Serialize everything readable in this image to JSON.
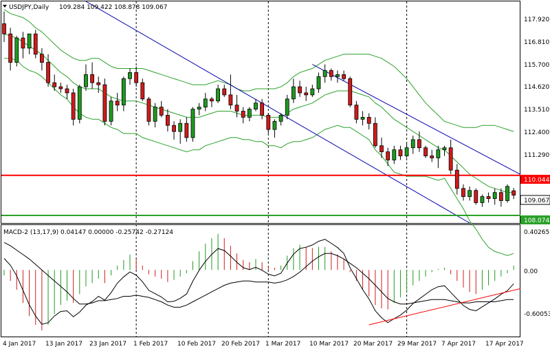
{
  "colors": {
    "bull": "#1e9a1e",
    "bear": "#d11a1a",
    "envelope": "#2aa02a",
    "channel": "#0000aa",
    "resistance": "#ff0000",
    "support": "#2aa02a",
    "macd_line": "#000000",
    "grid_vline": "#000000",
    "price_tag_bg": "#ffffff",
    "res_tag_bg": "#ff0000"
  },
  "header": {
    "symbol_label": "USDJPY,Daily",
    "ohlc": "109.284 109.422 108.878 109.067",
    "macd_label": "MACD-2 (13,17,9) 0.04147 0.00000 -0.25742 -0.27124"
  },
  "price_axis": {
    "ticks": [
      "117.920",
      "116.810",
      "115.700",
      "114.620",
      "113.510",
      "112.400",
      "111.290"
    ],
    "last_price": "109.067",
    "resistance": "110.044",
    "support": "108.074"
  },
  "macd_axis": {
    "ticks": [
      "0.40265",
      "0.00",
      "-0.60053"
    ]
  },
  "time_axis": {
    "labels": [
      "4 Jan 2017",
      "13 Jan 2017",
      "23 Jan 2017",
      "1 Feb 2017",
      "10 Feb 2017",
      "20 Feb 2017",
      "1 Mar 2017",
      "10 Mar 2017",
      "20 Mar 2017",
      "29 Mar 2017",
      "7 Apr 2017",
      "17 Apr 2017"
    ]
  },
  "chart_data": {
    "type": "candlestick",
    "title": "USDJPY,Daily",
    "ylim": [
      107.7,
      118.6
    ],
    "candles": [
      [
        117.5,
        118.1,
        116.6,
        117.0
      ],
      [
        117.0,
        117.3,
        115.2,
        115.6
      ],
      [
        115.6,
        116.9,
        115.4,
        116.8
      ],
      [
        116.8,
        117.1,
        115.8,
        116.3
      ],
      [
        116.3,
        117.0,
        116.0,
        117.0
      ],
      [
        117.0,
        117.2,
        115.8,
        116.0
      ],
      [
        116.0,
        116.3,
        115.2,
        115.6
      ],
      [
        115.6,
        116.0,
        114.4,
        114.6
      ],
      [
        114.6,
        115.0,
        114.2,
        114.4
      ],
      [
        114.4,
        114.6,
        114.1,
        114.3
      ],
      [
        114.3,
        114.5,
        113.8,
        114.1
      ],
      [
        114.1,
        114.3,
        112.5,
        112.8
      ],
      [
        112.8,
        114.5,
        112.6,
        114.4
      ],
      [
        114.4,
        115.5,
        114.2,
        115.0
      ],
      [
        115.0,
        115.6,
        114.3,
        114.6
      ],
      [
        114.6,
        114.9,
        114.1,
        114.5
      ],
      [
        114.5,
        114.8,
        112.5,
        112.7
      ],
      [
        112.7,
        113.9,
        112.5,
        113.7
      ],
      [
        113.7,
        114.1,
        113.2,
        113.5
      ],
      [
        113.5,
        114.9,
        113.2,
        114.8
      ],
      [
        114.8,
        115.3,
        114.5,
        115.1
      ],
      [
        115.1,
        115.4,
        114.4,
        114.6
      ],
      [
        114.6,
        114.8,
        113.7,
        113.8
      ],
      [
        113.8,
        113.9,
        112.5,
        112.7
      ],
      [
        112.7,
        113.6,
        112.4,
        113.4
      ],
      [
        113.4,
        113.7,
        112.9,
        113.0
      ],
      [
        113.0,
        113.3,
        112.2,
        112.5
      ],
      [
        112.5,
        112.7,
        111.8,
        112.2
      ],
      [
        112.2,
        112.8,
        111.6,
        112.6
      ],
      [
        112.6,
        112.9,
        111.7,
        111.9
      ],
      [
        111.9,
        113.4,
        111.7,
        113.3
      ],
      [
        113.3,
        113.6,
        113.0,
        113.4
      ],
      [
        113.4,
        114.1,
        113.2,
        113.8
      ],
      [
        113.8,
        113.9,
        113.4,
        113.7
      ],
      [
        113.7,
        114.5,
        113.6,
        114.3
      ],
      [
        114.3,
        114.5,
        113.9,
        114.0
      ],
      [
        114.0,
        115.0,
        113.3,
        113.5
      ],
      [
        113.5,
        114.0,
        112.9,
        113.2
      ],
      [
        113.2,
        113.4,
        112.6,
        112.9
      ],
      [
        112.9,
        113.4,
        112.7,
        113.3
      ],
      [
        113.3,
        113.8,
        113.2,
        113.6
      ],
      [
        113.6,
        113.8,
        112.8,
        113.0
      ],
      [
        113.0,
        113.1,
        112.1,
        112.3
      ],
      [
        112.3,
        112.8,
        111.9,
        112.7
      ],
      [
        112.7,
        113.1,
        112.5,
        113.0
      ],
      [
        113.0,
        114.0,
        112.8,
        113.8
      ],
      [
        113.8,
        114.8,
        113.6,
        114.4
      ],
      [
        114.4,
        114.7,
        113.9,
        114.1
      ],
      [
        114.1,
        114.4,
        113.7,
        114.0
      ],
      [
        114.0,
        114.5,
        113.9,
        114.3
      ],
      [
        114.3,
        115.1,
        114.1,
        114.9
      ],
      [
        114.9,
        115.5,
        114.6,
        115.2
      ],
      [
        115.2,
        115.3,
        114.7,
        114.9
      ],
      [
        114.9,
        115.2,
        114.6,
        115.0
      ],
      [
        115.0,
        115.2,
        114.7,
        114.8
      ],
      [
        114.8,
        114.9,
        113.4,
        113.5
      ],
      [
        113.5,
        113.7,
        112.6,
        112.8
      ],
      [
        112.8,
        113.2,
        112.5,
        112.9
      ],
      [
        112.9,
        113.1,
        112.3,
        112.6
      ],
      [
        112.6,
        112.9,
        111.4,
        111.5
      ],
      [
        111.5,
        111.9,
        110.9,
        111.2
      ],
      [
        111.2,
        111.4,
        110.5,
        110.8
      ],
      [
        110.8,
        111.5,
        110.6,
        111.3
      ],
      [
        111.3,
        111.5,
        110.8,
        111.0
      ],
      [
        111.0,
        111.6,
        110.9,
        111.4
      ],
      [
        111.4,
        112.0,
        111.1,
        111.8
      ],
      [
        111.8,
        112.2,
        111.2,
        111.4
      ],
      [
        111.4,
        111.5,
        110.9,
        111.0
      ],
      [
        111.0,
        111.3,
        110.7,
        110.9
      ],
      [
        110.9,
        111.5,
        110.4,
        111.3
      ],
      [
        111.3,
        111.5,
        111.0,
        111.4
      ],
      [
        111.4,
        111.8,
        110.1,
        110.3
      ],
      [
        110.3,
        110.6,
        109.1,
        109.4
      ],
      [
        109.4,
        109.6,
        108.8,
        109.0
      ],
      [
        109.0,
        109.5,
        108.8,
        109.3
      ],
      [
        109.3,
        109.4,
        108.6,
        108.7
      ],
      [
        108.7,
        109.1,
        108.5,
        109.0
      ],
      [
        109.0,
        109.2,
        108.7,
        108.9
      ],
      [
        108.9,
        109.4,
        108.6,
        109.2
      ],
      [
        109.2,
        109.4,
        108.5,
        108.8
      ],
      [
        108.8,
        109.6,
        108.7,
        109.5
      ],
      [
        109.284,
        109.422,
        108.878,
        109.067
      ]
    ],
    "upper_band": [
      118.2,
      118.0,
      117.9,
      117.8,
      117.6,
      117.3,
      117.1,
      116.8,
      116.5,
      116.2,
      116.0,
      115.8,
      115.7,
      115.7,
      115.8,
      115.8,
      115.6,
      115.4,
      115.3,
      115.3,
      115.3,
      115.3,
      115.3,
      115.2,
      115.1,
      115.0,
      114.9,
      114.8,
      114.7,
      114.6,
      114.5,
      114.5,
      114.5,
      114.6,
      114.7,
      114.6,
      114.5,
      114.3,
      114.2,
      114.2,
      114.3,
      114.3,
      114.3,
      114.3,
      114.4,
      114.6,
      114.9,
      115.1,
      115.2,
      115.3,
      115.5,
      115.7,
      115.8,
      115.9,
      116.0,
      116.0,
      116.0,
      116.0,
      116.0,
      115.9,
      115.8,
      115.6,
      115.4,
      115.1,
      114.8,
      114.4,
      114.0,
      113.6,
      113.3,
      113.0,
      112.7,
      112.6,
      112.5,
      112.4,
      112.4,
      112.4,
      112.5,
      112.5,
      112.5,
      112.4,
      112.3,
      112.2
    ],
    "middle_band": [
      117.0,
      116.9,
      116.8,
      116.6,
      116.4,
      116.2,
      116.0,
      115.7,
      115.4,
      115.1,
      114.9,
      114.6,
      114.4,
      114.3,
      114.3,
      114.3,
      114.1,
      113.9,
      113.8,
      113.7,
      113.7,
      113.7,
      113.6,
      113.5,
      113.4,
      113.3,
      113.2,
      113.1,
      113.0,
      112.9,
      112.9,
      112.9,
      113.0,
      113.1,
      113.2,
      113.2,
      113.2,
      113.1,
      113.0,
      113.0,
      113.0,
      113.0,
      112.9,
      112.9,
      112.9,
      113.1,
      113.3,
      113.4,
      113.5,
      113.6,
      113.8,
      114.0,
      114.1,
      114.2,
      114.2,
      114.2,
      114.1,
      114.0,
      113.9,
      113.6,
      113.4,
      113.1,
      112.8,
      112.6,
      112.4,
      112.2,
      112.0,
      111.8,
      111.6,
      111.4,
      111.3,
      111.0,
      110.7,
      110.4,
      110.1,
      109.9,
      109.7,
      109.5,
      109.4,
      109.3,
      109.2,
      109.2
    ],
    "lower_band": [
      115.8,
      115.8,
      115.7,
      115.4,
      115.2,
      115.1,
      114.9,
      114.6,
      114.3,
      114.0,
      113.8,
      113.4,
      113.1,
      112.9,
      112.8,
      112.8,
      112.6,
      112.4,
      112.3,
      112.1,
      112.1,
      112.1,
      111.9,
      111.8,
      111.7,
      111.6,
      111.5,
      111.4,
      111.3,
      111.2,
      111.3,
      111.3,
      111.5,
      111.6,
      111.7,
      111.8,
      111.9,
      111.9,
      111.8,
      111.8,
      111.7,
      111.7,
      111.5,
      111.5,
      111.4,
      111.6,
      111.7,
      111.7,
      111.8,
      111.9,
      112.1,
      112.3,
      112.4,
      112.5,
      112.4,
      112.4,
      112.2,
      112.0,
      111.8,
      111.3,
      111.0,
      110.6,
      110.2,
      110.1,
      110.0,
      110.0,
      110.0,
      110.0,
      109.9,
      109.8,
      109.9,
      109.4,
      108.9,
      108.4,
      107.8,
      107.4,
      106.9,
      106.5,
      106.3,
      106.2,
      106.1,
      106.2
    ],
    "macd_histogram": [
      -0.05,
      -0.1,
      -0.18,
      -0.3,
      -0.42,
      -0.5,
      -0.55,
      -0.5,
      -0.4,
      -0.32,
      -0.28,
      -0.3,
      -0.22,
      -0.15,
      -0.12,
      -0.08,
      -0.12,
      -0.05,
      0.04,
      0.09,
      0.14,
      0.1,
      0.04,
      -0.04,
      -0.06,
      -0.08,
      -0.11,
      -0.09,
      -0.06,
      -0.03,
      0.08,
      0.17,
      0.24,
      0.29,
      0.33,
      0.29,
      0.22,
      0.15,
      0.09,
      0.07,
      0.1,
      0.07,
      0.03,
      0.02,
      0.04,
      0.13,
      0.2,
      0.23,
      0.21,
      0.2,
      0.21,
      0.21,
      0.17,
      0.14,
      0.1,
      -0.02,
      -0.1,
      -0.18,
      -0.24,
      -0.32,
      -0.35,
      -0.36,
      -0.3,
      -0.25,
      -0.2,
      -0.14,
      -0.1,
      -0.06,
      -0.02,
      0.01,
      0.02,
      -0.04,
      -0.1,
      -0.16,
      -0.2,
      -0.22,
      -0.18,
      -0.14,
      -0.1,
      -0.06,
      -0.03,
      0.04
    ],
    "macd_signal": [
      0.25,
      0.22,
      0.18,
      0.14,
      0.1,
      0.05,
      0.0,
      -0.05,
      -0.1,
      -0.15,
      -0.2,
      -0.26,
      -0.31,
      -0.31,
      -0.3,
      -0.28,
      -0.28,
      -0.27,
      -0.26,
      -0.24,
      -0.24,
      -0.23,
      -0.24,
      -0.25,
      -0.27,
      -0.29,
      -0.32,
      -0.34,
      -0.34,
      -0.32,
      -0.29,
      -0.26,
      -0.23,
      -0.2,
      -0.17,
      -0.14,
      -0.12,
      -0.11,
      -0.1,
      -0.1,
      -0.11,
      -0.11,
      -0.11,
      -0.12,
      -0.11,
      -0.09,
      -0.06,
      -0.02,
      0.03,
      0.08,
      0.12,
      0.15,
      0.15,
      0.13,
      0.1,
      0.06,
      0.02,
      -0.03,
      -0.08,
      -0.14,
      -0.2,
      -0.26,
      -0.29,
      -0.31,
      -0.31,
      -0.3,
      -0.29,
      -0.28,
      -0.27,
      -0.27,
      -0.27,
      -0.28,
      -0.29,
      -0.3,
      -0.3,
      -0.29,
      -0.29,
      -0.29,
      -0.29,
      -0.28,
      -0.27,
      -0.27
    ],
    "resistance_level": 110.044,
    "support_level": 108.074
  }
}
